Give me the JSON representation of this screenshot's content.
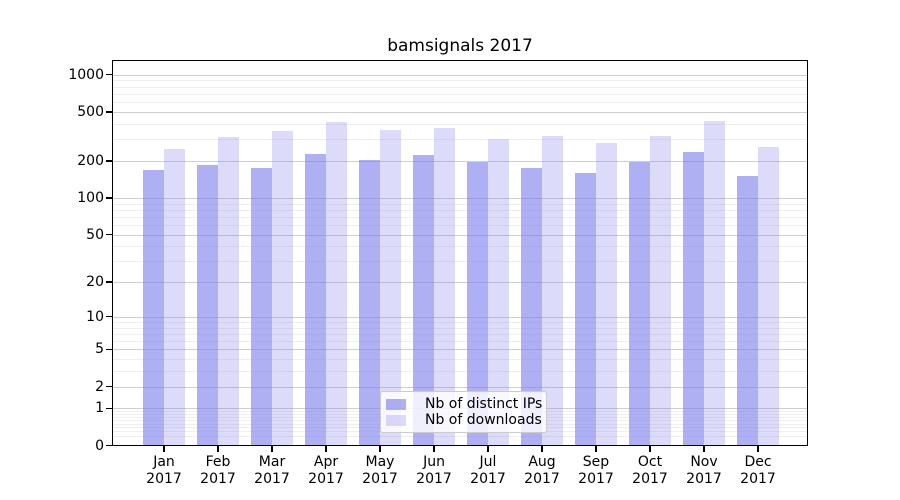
{
  "title": "bamsignals 2017",
  "colors": {
    "ips_fill": "rgba(121,121,235,0.60)",
    "downloads_fill": "rgba(121,121,235,0.26)",
    "grid_major": "#cfcfcf",
    "grid_minor": "#efefef",
    "axis": "#000000",
    "background": "#ffffff"
  },
  "legend": {
    "items": [
      {
        "series": "ips",
        "label": "Nb of distinct IPs"
      },
      {
        "series": "downloads",
        "label": "Nb of downloads"
      }
    ]
  },
  "x_axis": {
    "months": [
      "Jan",
      "Feb",
      "Mar",
      "Apr",
      "May",
      "Jun",
      "Jul",
      "Aug",
      "Sep",
      "Oct",
      "Nov",
      "Dec"
    ],
    "year": "2017"
  },
  "y_axis": {
    "tick_labels": [
      "1000",
      "500",
      "200",
      "100",
      "50",
      "20",
      "10",
      "5",
      "2",
      "1",
      "0"
    ],
    "tick_values": [
      1000,
      500,
      200,
      100,
      50,
      20,
      10,
      5,
      2,
      1,
      0
    ],
    "minor_gridline_values": [
      0.2,
      0.3,
      0.4,
      0.5,
      0.6,
      0.7,
      0.8,
      0.9,
      3,
      4,
      6,
      7,
      8,
      9,
      30,
      40,
      60,
      70,
      80,
      90,
      300,
      400,
      600,
      700,
      800,
      900
    ],
    "scale": "log10(value+1)"
  },
  "chart_data": {
    "type": "bar",
    "title": "bamsignals 2017",
    "categories": [
      "Jan 2017",
      "Feb 2017",
      "Mar 2017",
      "Apr 2017",
      "May 2017",
      "Jun 2017",
      "Jul 2017",
      "Aug 2017",
      "Sep 2017",
      "Oct 2017",
      "Nov 2017",
      "Dec 2017"
    ],
    "series": [
      {
        "name": "Nb of distinct IPs",
        "values": [
          168,
          184,
          174,
          225,
          200,
          220,
          193,
          173,
          158,
          196,
          235,
          150
        ]
      },
      {
        "name": "Nb of downloads",
        "values": [
          248,
          310,
          350,
          408,
          355,
          370,
          300,
          316,
          275,
          314,
          420,
          257
        ]
      }
    ],
    "xlabel": "",
    "ylabel": "",
    "yscale": "log(x+1)",
    "ylim": [
      0,
      1300
    ],
    "yticks": [
      0,
      1,
      2,
      5,
      10,
      20,
      50,
      100,
      200,
      500,
      1000
    ],
    "grid": "horizontal major + minor",
    "legend_position": "lower center"
  }
}
